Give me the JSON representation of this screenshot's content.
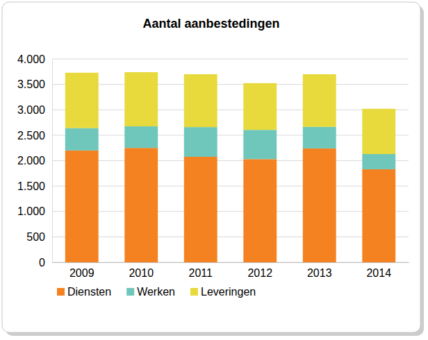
{
  "chart_data": {
    "type": "bar",
    "title": "Aantal aanbestedingen",
    "categories": [
      "2009",
      "2010",
      "2011",
      "2012",
      "2013",
      "2014"
    ],
    "series": [
      {
        "name": "Diensten",
        "color": "#f58220",
        "values": [
          2200,
          2250,
          2075,
          2030,
          2240,
          1830
        ]
      },
      {
        "name": "Werken",
        "color": "#6fc7bb",
        "values": [
          440,
          425,
          585,
          575,
          425,
          300
        ]
      },
      {
        "name": "Leveringen",
        "color": "#e8d93c",
        "values": [
          1090,
          1065,
          1040,
          920,
          1035,
          890
        ]
      }
    ],
    "stacked": true,
    "ylim": [
      0,
      4000
    ],
    "yticks": [
      0,
      500,
      {
        "value": 1000,
        "label": "1.000"
      },
      {
        "value": 1500,
        "label": "1.500"
      },
      {
        "value": 2000,
        "label": "2.000"
      },
      {
        "value": 2500,
        "label": "2.500"
      },
      {
        "value": 3000,
        "label": "3.000"
      },
      {
        "value": 3500,
        "label": "3.500"
      },
      {
        "value": 4000,
        "label": "4.000"
      }
    ],
    "grid": true,
    "legend": "bottom"
  }
}
